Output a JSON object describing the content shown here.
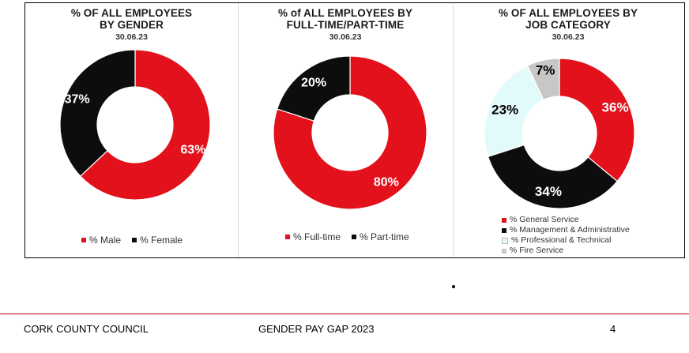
{
  "colors": {
    "red": "#e2111b",
    "black": "#0d0d0d",
    "cyan_light": "#e3fafa",
    "grey": "#c9c6c6"
  },
  "chart_data": [
    {
      "type": "pie",
      "variant": "donut",
      "title": "% OF ALL EMPLOYEES BY GENDER",
      "subtitle": "30.06.23",
      "legend_position": "bottom",
      "categories": [
        "% Male",
        "% Female"
      ],
      "values": [
        63,
        37
      ],
      "labels": [
        "63%",
        "37%"
      ],
      "colors": [
        "#e2111b",
        "#0d0d0d"
      ]
    },
    {
      "type": "pie",
      "variant": "donut",
      "title": "% of ALL EMPLOYEES BY FULL-TIME/PART-TIME",
      "subtitle": "30.06.23",
      "legend_position": "bottom",
      "categories": [
        "% Full-time",
        "% Part-time"
      ],
      "values": [
        80,
        20
      ],
      "labels": [
        "80%",
        "20%"
      ],
      "colors": [
        "#e2111b",
        "#0d0d0d"
      ]
    },
    {
      "type": "pie",
      "variant": "donut",
      "title": "% OF ALL EMPLOYEES BY JOB CATEGORY",
      "subtitle": "30.06.23",
      "legend_position": "bottom",
      "categories": [
        "% General Service",
        "% Management & Administrative",
        "% Professional & Technical",
        "% Fire Service"
      ],
      "values": [
        36,
        34,
        23,
        7
      ],
      "labels": [
        "36%",
        "34%",
        "23%",
        "7%"
      ],
      "colors": [
        "#e2111b",
        "#0d0d0d",
        "#e3fafa",
        "#c9c6c6"
      ]
    }
  ],
  "footer": {
    "org": "CORK COUNTY COUNCIL",
    "doc": "GENDER PAY GAP 2023",
    "page": "4"
  }
}
